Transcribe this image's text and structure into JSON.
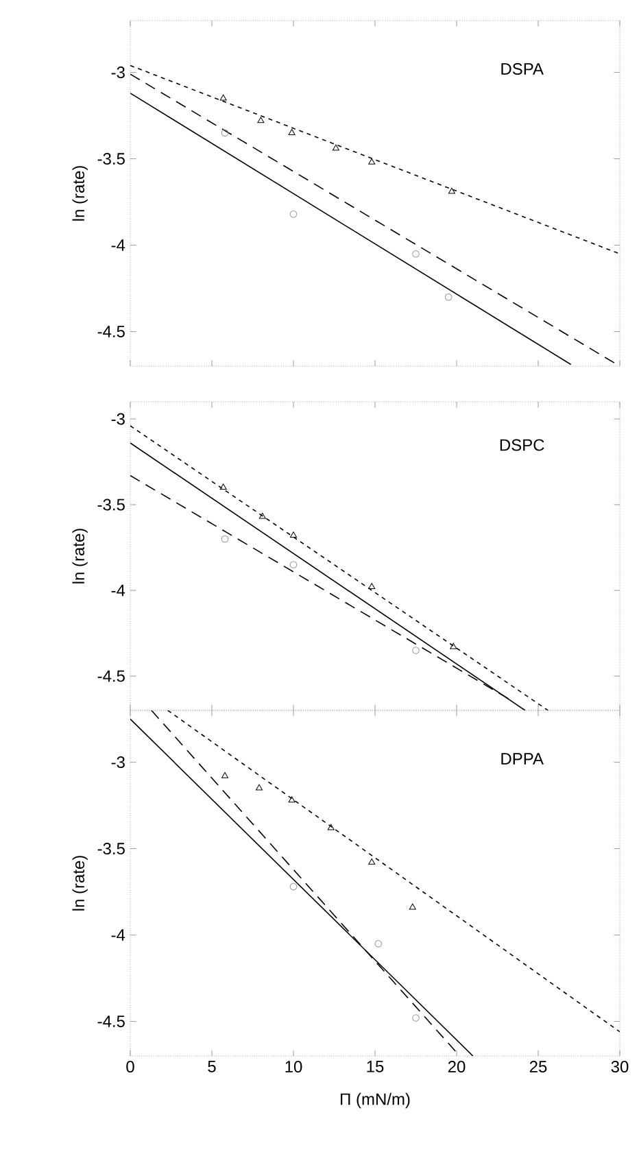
{
  "chart_data": [
    {
      "type": "line",
      "title": "DSPA",
      "ylabel": "ln (rate)",
      "xlim": [
        0,
        30
      ],
      "ylim": [
        -4.7,
        -2.7
      ],
      "xticks": [
        0,
        5,
        10,
        15,
        20,
        25,
        30
      ],
      "yticks": [
        -3,
        -3.5,
        -4,
        -4.5
      ],
      "tick_labels": "y",
      "series": [
        {
          "color": "#000000",
          "line_style": "solid",
          "marker": "none",
          "x": [
            0,
            27
          ],
          "values": [
            -3.12,
            -4.69
          ]
        },
        {
          "color": "#000000",
          "line_style": "dashed",
          "marker": "none",
          "x": [
            0,
            30
          ],
          "values": [
            -3.01,
            -4.7
          ]
        },
        {
          "color": "#000000",
          "line_style": "dotted",
          "marker": "none",
          "x": [
            0,
            30
          ],
          "values": [
            -2.96,
            -4.05
          ]
        },
        {
          "type": "scatter",
          "color": "#000000",
          "marker": "triangle",
          "x": [
            5.7,
            8,
            9.9,
            12.6,
            14.8,
            19.7
          ],
          "values": [
            -3.15,
            -3.28,
            -3.35,
            -3.44,
            -3.52,
            -3.69
          ]
        },
        {
          "type": "scatter",
          "color": "#999999",
          "marker": "circle",
          "x": [
            5.8,
            10,
            17.5,
            19.5
          ],
          "values": [
            -3.35,
            -3.82,
            -4.05,
            -4.3
          ]
        }
      ]
    },
    {
      "type": "line",
      "title": "DSPC",
      "ylabel": "ln (rate)",
      "xlim": [
        0,
        30
      ],
      "ylim": [
        -4.7,
        -2.9
      ],
      "xticks": [
        0,
        5,
        10,
        15,
        20,
        25,
        30
      ],
      "yticks": [
        -3,
        -3.5,
        -4,
        -4.5
      ],
      "tick_labels": "y",
      "series": [
        {
          "color": "#000000",
          "line_style": "solid",
          "marker": "none",
          "x": [
            0,
            24.2
          ],
          "values": [
            -3.14,
            -4.7
          ]
        },
        {
          "color": "#000000",
          "line_style": "dashed",
          "marker": "none",
          "x": [
            0,
            23.5
          ],
          "values": [
            -3.33,
            -4.65
          ]
        },
        {
          "color": "#000000",
          "line_style": "dotted",
          "marker": "none",
          "x": [
            0,
            25.6
          ],
          "values": [
            -3.04,
            -4.7
          ]
        },
        {
          "type": "scatter",
          "color": "#000000",
          "marker": "triangle",
          "x": [
            5.7,
            8.1,
            10,
            14.8,
            19.8
          ],
          "values": [
            -3.4,
            -3.57,
            -3.68,
            -3.98,
            -4.33
          ]
        },
        {
          "type": "scatter",
          "color": "#999999",
          "marker": "circle",
          "x": [
            5.8,
            10,
            17.5
          ],
          "values": [
            -3.7,
            -3.85,
            -4.35
          ]
        }
      ]
    },
    {
      "type": "line",
      "title": "DPPA",
      "ylabel": "ln (rate)",
      "xlabel": "Π  (mN/m)",
      "xlim": [
        0,
        30
      ],
      "ylim": [
        -4.7,
        -2.7
      ],
      "xticks": [
        0,
        5,
        10,
        15,
        20,
        25,
        30
      ],
      "yticks": [
        -3,
        -3.5,
        -4,
        -4.5
      ],
      "series": [
        {
          "color": "#000000",
          "line_style": "solid",
          "marker": "none",
          "x": [
            0,
            21
          ],
          "values": [
            -2.75,
            -4.7
          ]
        },
        {
          "color": "#000000",
          "line_style": "dashed",
          "marker": "none",
          "x": [
            1.3,
            20
          ],
          "values": [
            -2.7,
            -4.68
          ]
        },
        {
          "color": "#000000",
          "line_style": "dotted",
          "marker": "none",
          "x": [
            2.3,
            30
          ],
          "values": [
            -2.7,
            -4.56
          ]
        },
        {
          "type": "scatter",
          "color": "#000000",
          "marker": "triangle",
          "x": [
            5.8,
            7.9,
            9.9,
            12.3,
            14.8,
            17.3
          ],
          "values": [
            -3.08,
            -3.15,
            -3.22,
            -3.38,
            -3.58,
            -3.84
          ]
        },
        {
          "type": "scatter",
          "color": "#999999",
          "marker": "circle",
          "x": [
            10,
            15.2,
            17.5
          ],
          "values": [
            -3.72,
            -4.05,
            -4.48
          ]
        }
      ]
    }
  ]
}
